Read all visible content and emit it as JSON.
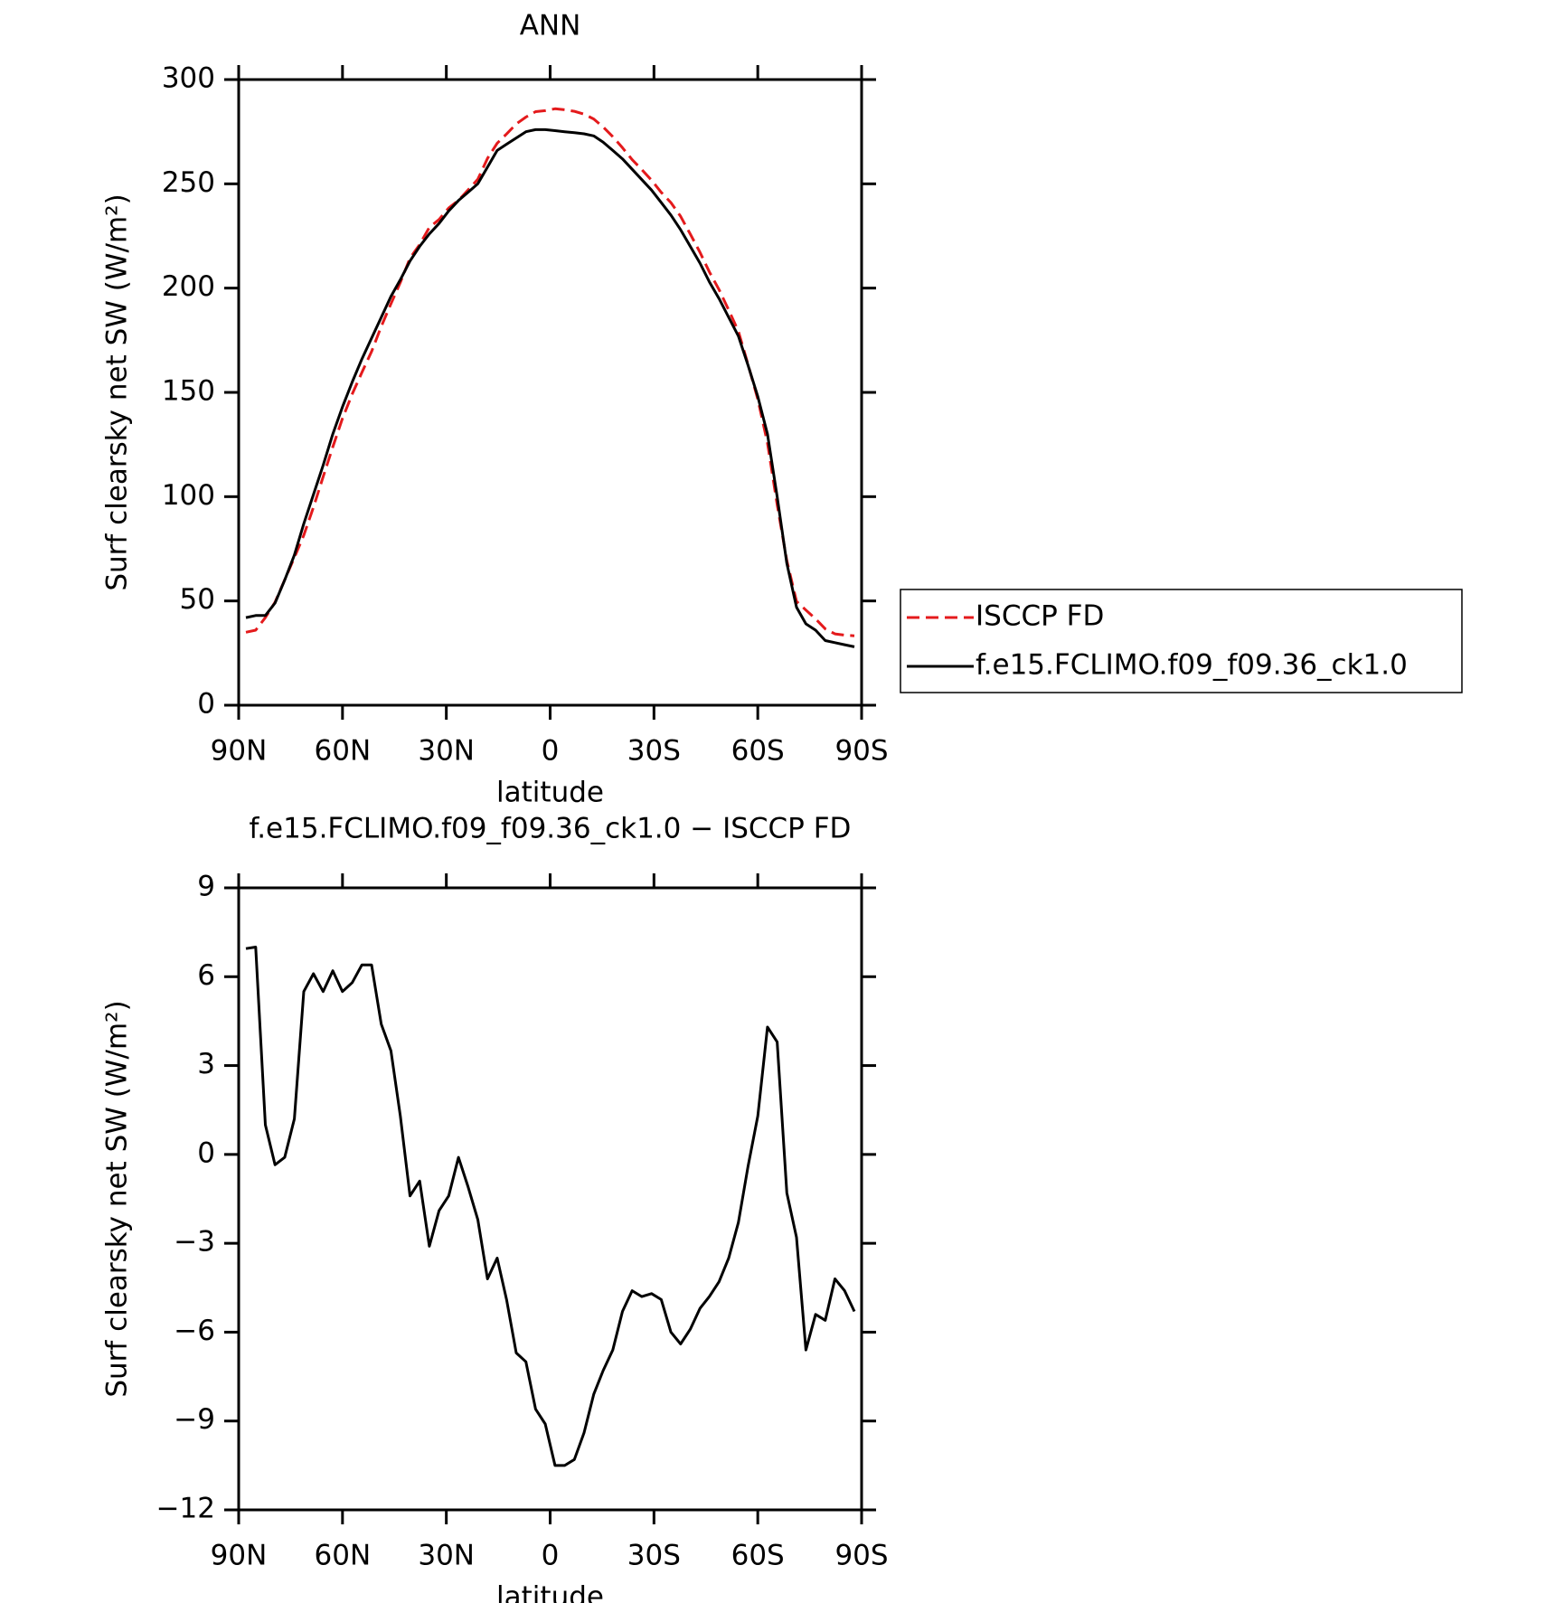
{
  "chart_data": [
    {
      "type": "line",
      "title": "ANN",
      "xlabel": "latitude",
      "ylabel": "Surf clearsky net SW (W/m²)",
      "x": [
        87.9,
        85.1,
        82.3,
        79.5,
        76.7,
        73.9,
        71.2,
        68.4,
        65.6,
        62.8,
        60.0,
        57.2,
        54.4,
        51.6,
        48.8,
        46.0,
        43.3,
        40.5,
        37.7,
        34.9,
        32.1,
        29.3,
        26.5,
        23.7,
        20.9,
        18.1,
        15.3,
        12.6,
        9.8,
        7.0,
        4.2,
        1.4,
        -1.4,
        -4.2,
        -7.0,
        -9.8,
        -12.6,
        -15.3,
        -18.1,
        -20.9,
        -23.7,
        -26.5,
        -29.3,
        -32.1,
        -34.9,
        -37.7,
        -40.5,
        -43.3,
        -46.0,
        -48.8,
        -51.6,
        -54.4,
        -57.2,
        -60.0,
        -62.8,
        -65.6,
        -68.4,
        -71.2,
        -73.9,
        -76.7,
        -79.5,
        -82.3,
        -85.1,
        -87.9
      ],
      "series": [
        {
          "name": "ISCCP FD",
          "color": "#e41a1c",
          "dashed": true,
          "values": [
            35,
            36,
            42,
            49.4,
            60.1,
            70.8,
            81.5,
            94.9,
            109.5,
            123.8,
            137.5,
            149.2,
            159.6,
            169.6,
            181.6,
            192.5,
            202.7,
            214.4,
            220.9,
            229.1,
            232.9,
            238.4,
            242.1,
            247.1,
            252.2,
            262.2,
            269.5,
            273.9,
            278.7,
            282,
            284.6,
            285.1,
            286,
            285.5,
            284.8,
            283.4,
            281.1,
            277.3,
            272.6,
            267.3,
            261.6,
            256.8,
            251.7,
            245.9,
            241,
            234.4,
            225.9,
            217.2,
            207.8,
            199.3,
            189.5,
            179.3,
            163.4,
            146.7,
            125.7,
            96.2,
            69.3,
            49.8,
            45.6,
            41.4,
            36.6,
            34.2,
            33.6,
            33.3
          ]
        },
        {
          "name": "f.e15.FCLIMO.f09_f09.36_ck1.0",
          "color": "#000000",
          "dashed": false,
          "values": [
            42,
            43,
            43,
            49,
            60,
            72,
            87,
            101,
            115,
            130,
            143,
            155,
            166,
            176,
            186,
            196,
            204,
            213,
            220,
            226,
            231,
            237,
            242,
            246,
            250,
            258,
            266,
            269,
            272,
            275,
            276,
            276,
            275.5,
            275,
            274.5,
            274,
            273,
            270,
            266,
            262,
            257,
            252,
            247,
            241,
            235,
            228,
            220,
            212,
            203,
            195,
            186,
            177,
            163,
            148,
            130,
            100,
            68,
            47,
            39,
            36,
            31,
            30,
            29,
            28
          ]
        }
      ],
      "xlim": [
        90,
        -90
      ],
      "xticks": [
        {
          "value": 90,
          "label": "90N"
        },
        {
          "value": 60,
          "label": "60N"
        },
        {
          "value": 30,
          "label": "30N"
        },
        0,
        {
          "value": -30,
          "label": "30S"
        },
        {
          "value": -60,
          "label": "60S"
        },
        {
          "value": -90,
          "label": "90S"
        }
      ],
      "ylim": [
        0,
        300
      ],
      "yticks": [
        0,
        50,
        100,
        150,
        200,
        250,
        300
      ],
      "legend": "right"
    },
    {
      "type": "line",
      "title": "f.e15.FCLIMO.f09_f09.36_ck1.0 − ISCCP FD",
      "xlabel": "latitude",
      "ylabel": "Surf clearsky net SW (W/m²)",
      "x": [
        87.9,
        85.1,
        82.3,
        79.5,
        76.7,
        73.9,
        71.2,
        68.4,
        65.6,
        62.8,
        60.0,
        57.2,
        54.4,
        51.6,
        48.8,
        46.0,
        43.3,
        40.5,
        37.7,
        34.9,
        32.1,
        29.3,
        26.5,
        23.7,
        20.9,
        18.1,
        15.3,
        12.6,
        9.8,
        7.0,
        4.2,
        1.4,
        -1.4,
        -4.2,
        -7.0,
        -9.8,
        -12.6,
        -15.3,
        -18.1,
        -20.9,
        -23.7,
        -26.5,
        -29.3,
        -32.1,
        -34.9,
        -37.7,
        -40.5,
        -43.3,
        -46.0,
        -48.8,
        -51.6,
        -54.4,
        -57.2,
        -60.0,
        -62.8,
        -65.6,
        -68.4,
        -71.2,
        -73.9,
        -76.7,
        -79.5,
        -82.3,
        -85.1,
        -87.9
      ],
      "series": [
        {
          "color": "#000000",
          "values": [
            6.95,
            7.0,
            1.0,
            -0.35,
            -0.1,
            1.2,
            5.5,
            6.1,
            5.5,
            6.2,
            5.5,
            5.8,
            6.4,
            6.4,
            4.4,
            3.5,
            1.3,
            -1.4,
            -0.9,
            -3.1,
            -1.9,
            -1.4,
            -0.1,
            -1.1,
            -2.2,
            -4.2,
            -3.5,
            -4.9,
            -6.7,
            -7.0,
            -8.6,
            -9.1,
            -10.5,
            -10.5,
            -10.3,
            -9.4,
            -8.1,
            -7.3,
            -6.6,
            -5.3,
            -4.6,
            -4.8,
            -4.7,
            -4.9,
            -6.0,
            -6.4,
            -5.9,
            -5.2,
            -4.8,
            -4.3,
            -3.5,
            -2.3,
            -0.4,
            1.3,
            4.3,
            3.8,
            -1.3,
            -2.8,
            -6.6,
            -5.4,
            -5.6,
            -4.2,
            -4.6,
            -5.3
          ]
        }
      ],
      "xlim": [
        90,
        -90
      ],
      "xticks": [
        {
          "value": 90,
          "label": "90N"
        },
        {
          "value": 60,
          "label": "60N"
        },
        {
          "value": 30,
          "label": "30N"
        },
        0,
        {
          "value": -30,
          "label": "30S"
        },
        {
          "value": -60,
          "label": "60S"
        },
        {
          "value": -90,
          "label": "90S"
        }
      ],
      "ylim": [
        -12,
        9
      ],
      "yticks": [
        {
          "value": -12,
          "label": "−12"
        },
        {
          "value": -9,
          "label": "−9"
        },
        {
          "value": -6,
          "label": "−6"
        },
        {
          "value": -3,
          "label": "−3"
        },
        0,
        3,
        6,
        9
      ]
    }
  ]
}
